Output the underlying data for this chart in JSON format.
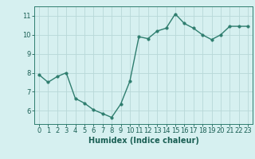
{
  "x": [
    0,
    1,
    2,
    3,
    4,
    5,
    6,
    7,
    8,
    9,
    10,
    11,
    12,
    13,
    14,
    15,
    16,
    17,
    18,
    19,
    20,
    21,
    22,
    23
  ],
  "y": [
    7.9,
    7.5,
    7.8,
    8.0,
    6.65,
    6.4,
    6.05,
    5.85,
    5.65,
    6.35,
    7.55,
    9.9,
    9.8,
    10.2,
    10.35,
    11.1,
    10.6,
    10.35,
    10.0,
    9.75,
    10.0,
    10.45,
    10.45,
    10.45
  ],
  "xlim": [
    -0.5,
    23.5
  ],
  "ylim": [
    5.3,
    11.5
  ],
  "yticks": [
    6,
    7,
    8,
    9,
    10,
    11
  ],
  "xticks": [
    0,
    1,
    2,
    3,
    4,
    5,
    6,
    7,
    8,
    9,
    10,
    11,
    12,
    13,
    14,
    15,
    16,
    17,
    18,
    19,
    20,
    21,
    22,
    23
  ],
  "xlabel": "Humidex (Indice chaleur)",
  "line_color": "#2e7d6e",
  "marker_color": "#2e7d6e",
  "bg_color": "#d6f0f0",
  "grid_color": "#b8d8d8",
  "axis_color": "#2e7d6e",
  "tick_color": "#1a5f54",
  "label_color": "#1a5f54",
  "xlabel_fontsize": 7,
  "tick_fontsize": 6,
  "marker_size": 2.5,
  "line_width": 1.0
}
